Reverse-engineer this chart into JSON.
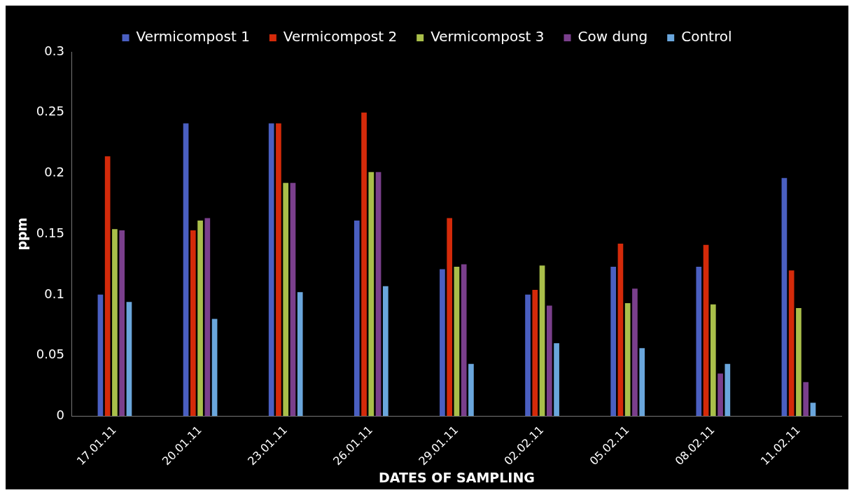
{
  "chart_data": {
    "type": "bar",
    "xlabel": "DATES OF SAMPLING",
    "ylabel": "ppm",
    "categories": [
      "17.01.11",
      "20.01.11",
      "23.01.11",
      "26.01.11",
      "29.01.11",
      "02.02.11",
      "05.02.11",
      "08.02.11",
      "11.02.11"
    ],
    "series": [
      {
        "name": "Vermicompost 1",
        "color": "#4a5fc1",
        "values": [
          0.1,
          0.241,
          0.241,
          0.161,
          0.121,
          0.1,
          0.123,
          0.123,
          0.196
        ]
      },
      {
        "name": "Vermicompost 2",
        "color": "#d42a0a",
        "values": [
          0.214,
          0.153,
          0.241,
          0.25,
          0.163,
          0.104,
          0.142,
          0.141,
          0.12
        ]
      },
      {
        "name": "Vermicompost 3",
        "color": "#a9bf4a",
        "values": [
          0.154,
          0.161,
          0.192,
          0.201,
          0.123,
          0.124,
          0.093,
          0.092,
          0.089
        ]
      },
      {
        "name": "Cow dung",
        "color": "#7a3f8c",
        "values": [
          0.153,
          0.163,
          0.192,
          0.201,
          0.125,
          0.091,
          0.105,
          0.035,
          0.028
        ]
      },
      {
        "name": "Control",
        "color": "#6aa6dc",
        "values": [
          0.094,
          0.08,
          0.102,
          0.107,
          0.043,
          0.06,
          0.056,
          0.043,
          0.011
        ]
      }
    ],
    "ylim": [
      0,
      0.3
    ],
    "yticks": [
      0,
      0.05,
      0.1,
      0.15,
      0.2,
      0.25,
      0.3
    ],
    "grid": false,
    "legend": "top"
  }
}
